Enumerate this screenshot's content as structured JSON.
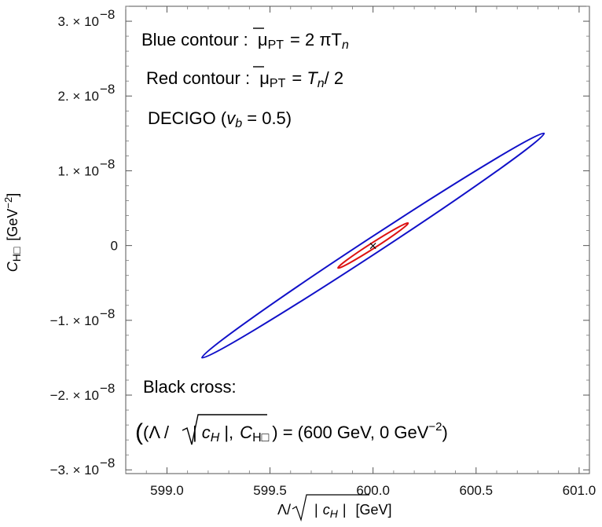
{
  "chart_data": {
    "type": "line",
    "xlabel_parts": {
      "lambda": "Λ/",
      "c": "c",
      "sub": "H",
      "unit": "[GeV]"
    },
    "ylabel_parts": {
      "c": "C",
      "sub": "H□",
      "unit": "[GeV",
      "exp": "−2",
      "close": "]"
    },
    "xlim": [
      598.8,
      601.05
    ],
    "ylim": [
      -3.05e-08,
      3.2e-08
    ],
    "x_ticks": [
      599.0,
      599.5,
      600.0,
      600.5,
      601.0
    ],
    "x_tick_labels": [
      "599.0",
      "599.5",
      "600.0",
      "600.5",
      "601.0"
    ],
    "y_ticks": [
      3e-08,
      2e-08,
      1e-08,
      0,
      -1e-08,
      -2e-08,
      -3e-08
    ],
    "y_tick_labels": [
      {
        "mant": "3. × 10",
        "exp": "−8"
      },
      {
        "mant": "2. × 10",
        "exp": "−8"
      },
      {
        "mant": "1. × 10",
        "exp": "−8"
      },
      {
        "mant": "0",
        "exp": ""
      },
      {
        "mant": "−1. × 10",
        "exp": "−8"
      },
      {
        "mant": "−2. × 10",
        "exp": "−8"
      },
      {
        "mant": "−3. × 10",
        "exp": "−8"
      }
    ],
    "series": [
      {
        "color": "#1010c8",
        "center": [
          600.0,
          0.0
        ],
        "end_point": [
          600.83,
          1.5e-08
        ],
        "end_point_neg": [
          599.17,
          -1.5e-08
        ],
        "half_width_x": 0.07
      },
      {
        "color": "#dd1111",
        "center": [
          600.0,
          0.0
        ],
        "end_point": [
          600.17,
          3e-09
        ],
        "end_point_neg": [
          599.83,
          -3e-09
        ],
        "half_width_x": 0.025
      }
    ],
    "points": [
      {
        "x": 600.0,
        "y": 0.0,
        "marker": "×"
      }
    ],
    "annotations": {
      "blue": {
        "label": "Blue contour :",
        "mu": "μ",
        "sub": "PT",
        "rhs": "= 2 πT",
        "rhs_sub": "n"
      },
      "red": {
        "label": "Red contour :",
        "mu": "μ",
        "sub": "PT",
        "rhs": "= ",
        "rhs_T": "T",
        "rhs_sub": "n",
        "rhs_tail": "/ 2"
      },
      "decigo": {
        "label": "DECIGO (",
        "v": "v",
        "v_sub": "b",
        "tail": " =  0.5)"
      },
      "cross_title": "Black cross:",
      "cross_line": {
        "open": "(Λ /",
        "c": "c",
        "c_sub": "H",
        "comma": ",",
        "C": "C",
        "C_sub": "H□",
        "rhs": ") = (600 GeV, 0 GeV",
        "exp": "−2",
        "close": ")"
      }
    },
    "grid": false
  }
}
